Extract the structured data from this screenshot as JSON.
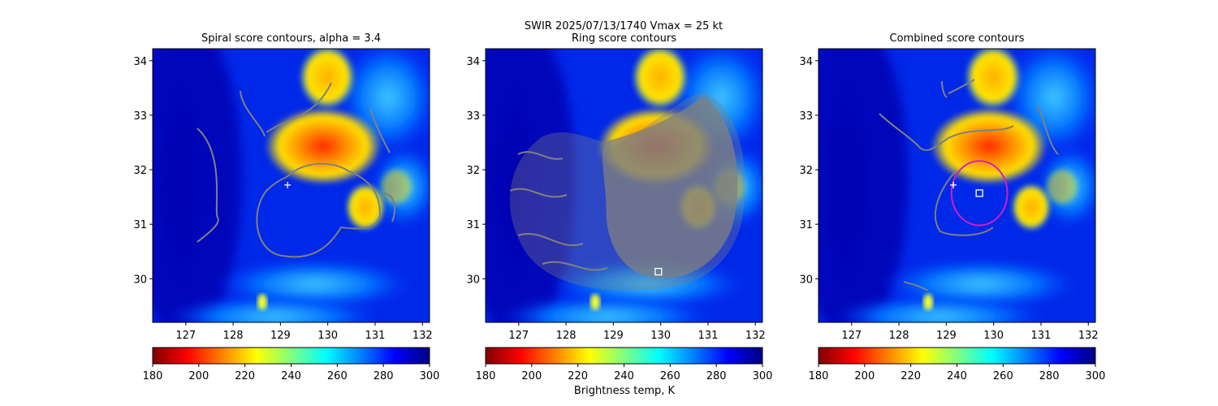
{
  "figure": {
    "suptitle_line1": "SWIR  2025/07/13/1740    Vmax = 25 kt"
  },
  "colorbar": {
    "label": "Brightness temp, K",
    "ticks": [
      180,
      200,
      220,
      240,
      260,
      280,
      300
    ],
    "range": [
      180,
      300
    ],
    "colormap": "jet_reversed",
    "stops": [
      "#800000",
      "#ff0000",
      "#ff8000",
      "#ffff00",
      "#80ff80",
      "#00ffff",
      "#0080ff",
      "#0000ff",
      "#000080"
    ]
  },
  "colors": {
    "contour": "#808080",
    "fit_circle": "#d020c0",
    "marker": "#ffffff"
  },
  "chart_data": [
    {
      "type": "heatmap",
      "title": "Spiral score contours, alpha =  3.4",
      "xlim": [
        126.3,
        132.15
      ],
      "ylim": [
        29.2,
        34.22
      ],
      "xticks": [
        127,
        128,
        129,
        130,
        131,
        132
      ],
      "yticks": [
        30,
        31,
        32,
        33,
        34
      ],
      "overlay": "spiral score contours",
      "markers": [
        {
          "shape": "plus",
          "x": 129.15,
          "y": 31.72
        }
      ],
      "circle": null
    },
    {
      "type": "heatmap",
      "title": "Ring score contours",
      "xlim": [
        126.3,
        132.15
      ],
      "ylim": [
        29.2,
        34.22
      ],
      "xticks": [
        127,
        128,
        129,
        130,
        131,
        132
      ],
      "yticks": [
        30,
        31,
        32,
        33,
        34
      ],
      "overlay": "ring score contours",
      "markers": [
        {
          "shape": "square",
          "x": 129.95,
          "y": 30.13
        }
      ],
      "circle": null
    },
    {
      "type": "heatmap",
      "title": "Combined score contours",
      "xlim": [
        126.3,
        132.15
      ],
      "ylim": [
        29.2,
        34.22
      ],
      "xticks": [
        127,
        128,
        129,
        130,
        131,
        132
      ],
      "yticks": [
        30,
        31,
        32,
        33,
        34
      ],
      "overlay": "combined score contours",
      "markers": [
        {
          "shape": "plus",
          "x": 129.15,
          "y": 31.72
        },
        {
          "shape": "square",
          "x": 129.7,
          "y": 31.57
        }
      ],
      "circle": {
        "cx": 129.7,
        "cy": 31.57,
        "r": 0.59
      }
    }
  ]
}
